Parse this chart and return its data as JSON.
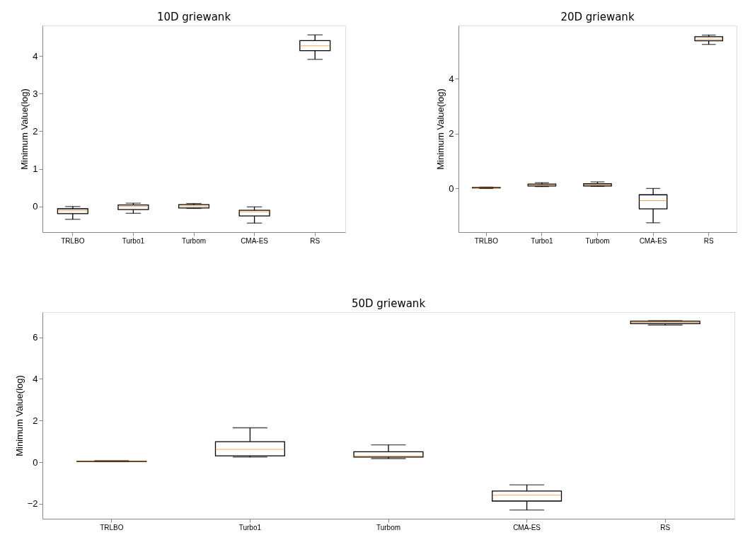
{
  "chart_data": [
    {
      "type": "box",
      "title": "10D griewank",
      "ylabel": "Minimum Value(log)",
      "categories": [
        "TRLBO",
        "Turbo1",
        "Turbom",
        "CMA-ES",
        "RS"
      ],
      "ylim": [
        -0.68,
        4.81
      ],
      "yticks": [
        0,
        1,
        2,
        3,
        4
      ],
      "boxes": [
        {
          "low": -0.34,
          "q1": -0.19,
          "median": -0.11,
          "q3": -0.06,
          "high": 0.0
        },
        {
          "low": -0.18,
          "q1": -0.08,
          "median": 0.0,
          "q3": 0.04,
          "high": 0.09
        },
        {
          "low": -0.05,
          "q1": -0.04,
          "median": 0.01,
          "q3": 0.05,
          "high": 0.08
        },
        {
          "low": -0.44,
          "q1": -0.25,
          "median": -0.14,
          "q3": -0.1,
          "high": -0.01
        },
        {
          "low": 3.91,
          "q1": 4.14,
          "median": 4.27,
          "q3": 4.41,
          "high": 4.56
        }
      ]
    },
    {
      "type": "box",
      "title": "20D griewank",
      "ylabel": "Minimum Value(log)",
      "categories": [
        "TRLBO",
        "Turbo1",
        "Turbom",
        "CMA-ES",
        "RS"
      ],
      "ylim": [
        -1.59,
        5.94
      ],
      "yticks": [
        0,
        2,
        4
      ],
      "boxes": [
        {
          "low": 0.0,
          "q1": 0.02,
          "median": 0.03,
          "q3": 0.04,
          "high": 0.05
        },
        {
          "low": 0.07,
          "q1": 0.09,
          "median": 0.12,
          "q3": 0.16,
          "high": 0.21
        },
        {
          "low": 0.08,
          "q1": 0.09,
          "median": 0.13,
          "q3": 0.17,
          "high": 0.24
        },
        {
          "low": -1.25,
          "q1": -0.74,
          "median": -0.44,
          "q3": -0.23,
          "high": 0.0
        },
        {
          "low": 5.25,
          "q1": 5.38,
          "median": 5.44,
          "q3": 5.53,
          "high": 5.59
        }
      ]
    },
    {
      "type": "box",
      "title": "50D griewank",
      "ylabel": "Minimum Value(log)",
      "categories": [
        "TRLBO",
        "Turbo1",
        "Turbom",
        "CMA-ES",
        "RS"
      ],
      "ylim": [
        -2.72,
        7.21
      ],
      "yticks": [
        -2,
        0,
        2,
        4,
        6
      ],
      "boxes": [
        {
          "low": 0.02,
          "q1": 0.03,
          "median": 0.04,
          "q3": 0.05,
          "high": 0.07
        },
        {
          "low": 0.24,
          "q1": 0.3,
          "median": 0.61,
          "q3": 0.98,
          "high": 1.65
        },
        {
          "low": 0.17,
          "q1": 0.24,
          "median": 0.3,
          "q3": 0.5,
          "high": 0.83
        },
        {
          "low": -2.3,
          "q1": -1.87,
          "median": -1.59,
          "q3": -1.39,
          "high": -1.09
        },
        {
          "low": 6.59,
          "q1": 6.65,
          "median": 6.72,
          "q3": 6.77,
          "high": 6.8
        }
      ]
    }
  ]
}
